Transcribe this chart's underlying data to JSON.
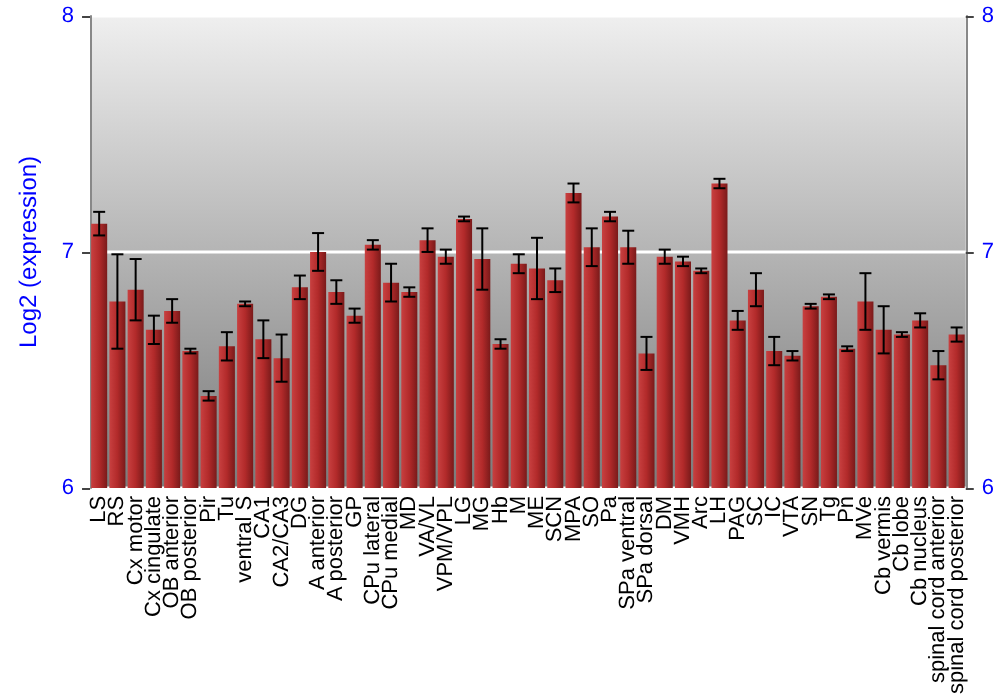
{
  "chart_data": {
    "type": "bar",
    "ylabel": "Log2 (expression)",
    "categories": [
      "LS",
      "RS",
      "Cx motor",
      "Cx cingulate",
      "OB anterior",
      "OB posterior",
      "Pir",
      "Tu",
      "ventral S",
      "CA1",
      "CA2/CA3",
      "DG",
      "A anterior",
      "A posterior",
      "GP",
      "CPu lateral",
      "CPu medial",
      "MD",
      "VA/VL",
      "VPM/VPL",
      "LG",
      "MG",
      "Hb",
      "M",
      "ME",
      "SCN",
      "MPA",
      "SO",
      "Pa",
      "SPa ventral",
      "SPa dorsal",
      "DM",
      "VMH",
      "Arc",
      "LH",
      "PAG",
      "SC",
      "IC",
      "VTA",
      "SN",
      "Tg",
      "Pn",
      "MVe",
      "Cb vermis",
      "Cb lobe",
      "Cb nucleus",
      "spinal cord anterior",
      "spinal cord posterior"
    ],
    "values": [
      7.12,
      6.79,
      6.84,
      6.67,
      6.75,
      6.58,
      6.39,
      6.6,
      6.78,
      6.63,
      6.55,
      6.85,
      7.0,
      6.83,
      6.73,
      7.03,
      6.87,
      6.83,
      7.05,
      6.98,
      7.14,
      6.97,
      6.61,
      6.95,
      6.93,
      6.88,
      7.25,
      7.02,
      7.15,
      7.02,
      6.57,
      6.98,
      6.96,
      6.92,
      7.29,
      6.71,
      6.84,
      6.58,
      6.56,
      6.77,
      6.81,
      6.59,
      6.79,
      6.67,
      6.65,
      6.71,
      6.52,
      6.65
    ],
    "errors": [
      0.05,
      0.2,
      0.13,
      0.06,
      0.05,
      0.01,
      0.02,
      0.06,
      0.01,
      0.08,
      0.1,
      0.05,
      0.08,
      0.05,
      0.03,
      0.02,
      0.08,
      0.02,
      0.05,
      0.03,
      0.01,
      0.13,
      0.02,
      0.04,
      0.13,
      0.05,
      0.04,
      0.08,
      0.02,
      0.07,
      0.07,
      0.03,
      0.02,
      0.01,
      0.02,
      0.04,
      0.07,
      0.06,
      0.02,
      0.01,
      0.01,
      0.01,
      0.12,
      0.1,
      0.01,
      0.03,
      0.06,
      0.03
    ],
    "color": "#b22a2a",
    "ylim": [
      6,
      8
    ],
    "yticks": [
      6,
      7,
      8
    ],
    "y2lim": [
      6,
      8
    ],
    "y2ticks": [
      6,
      7,
      8
    ],
    "grid": "y"
  }
}
